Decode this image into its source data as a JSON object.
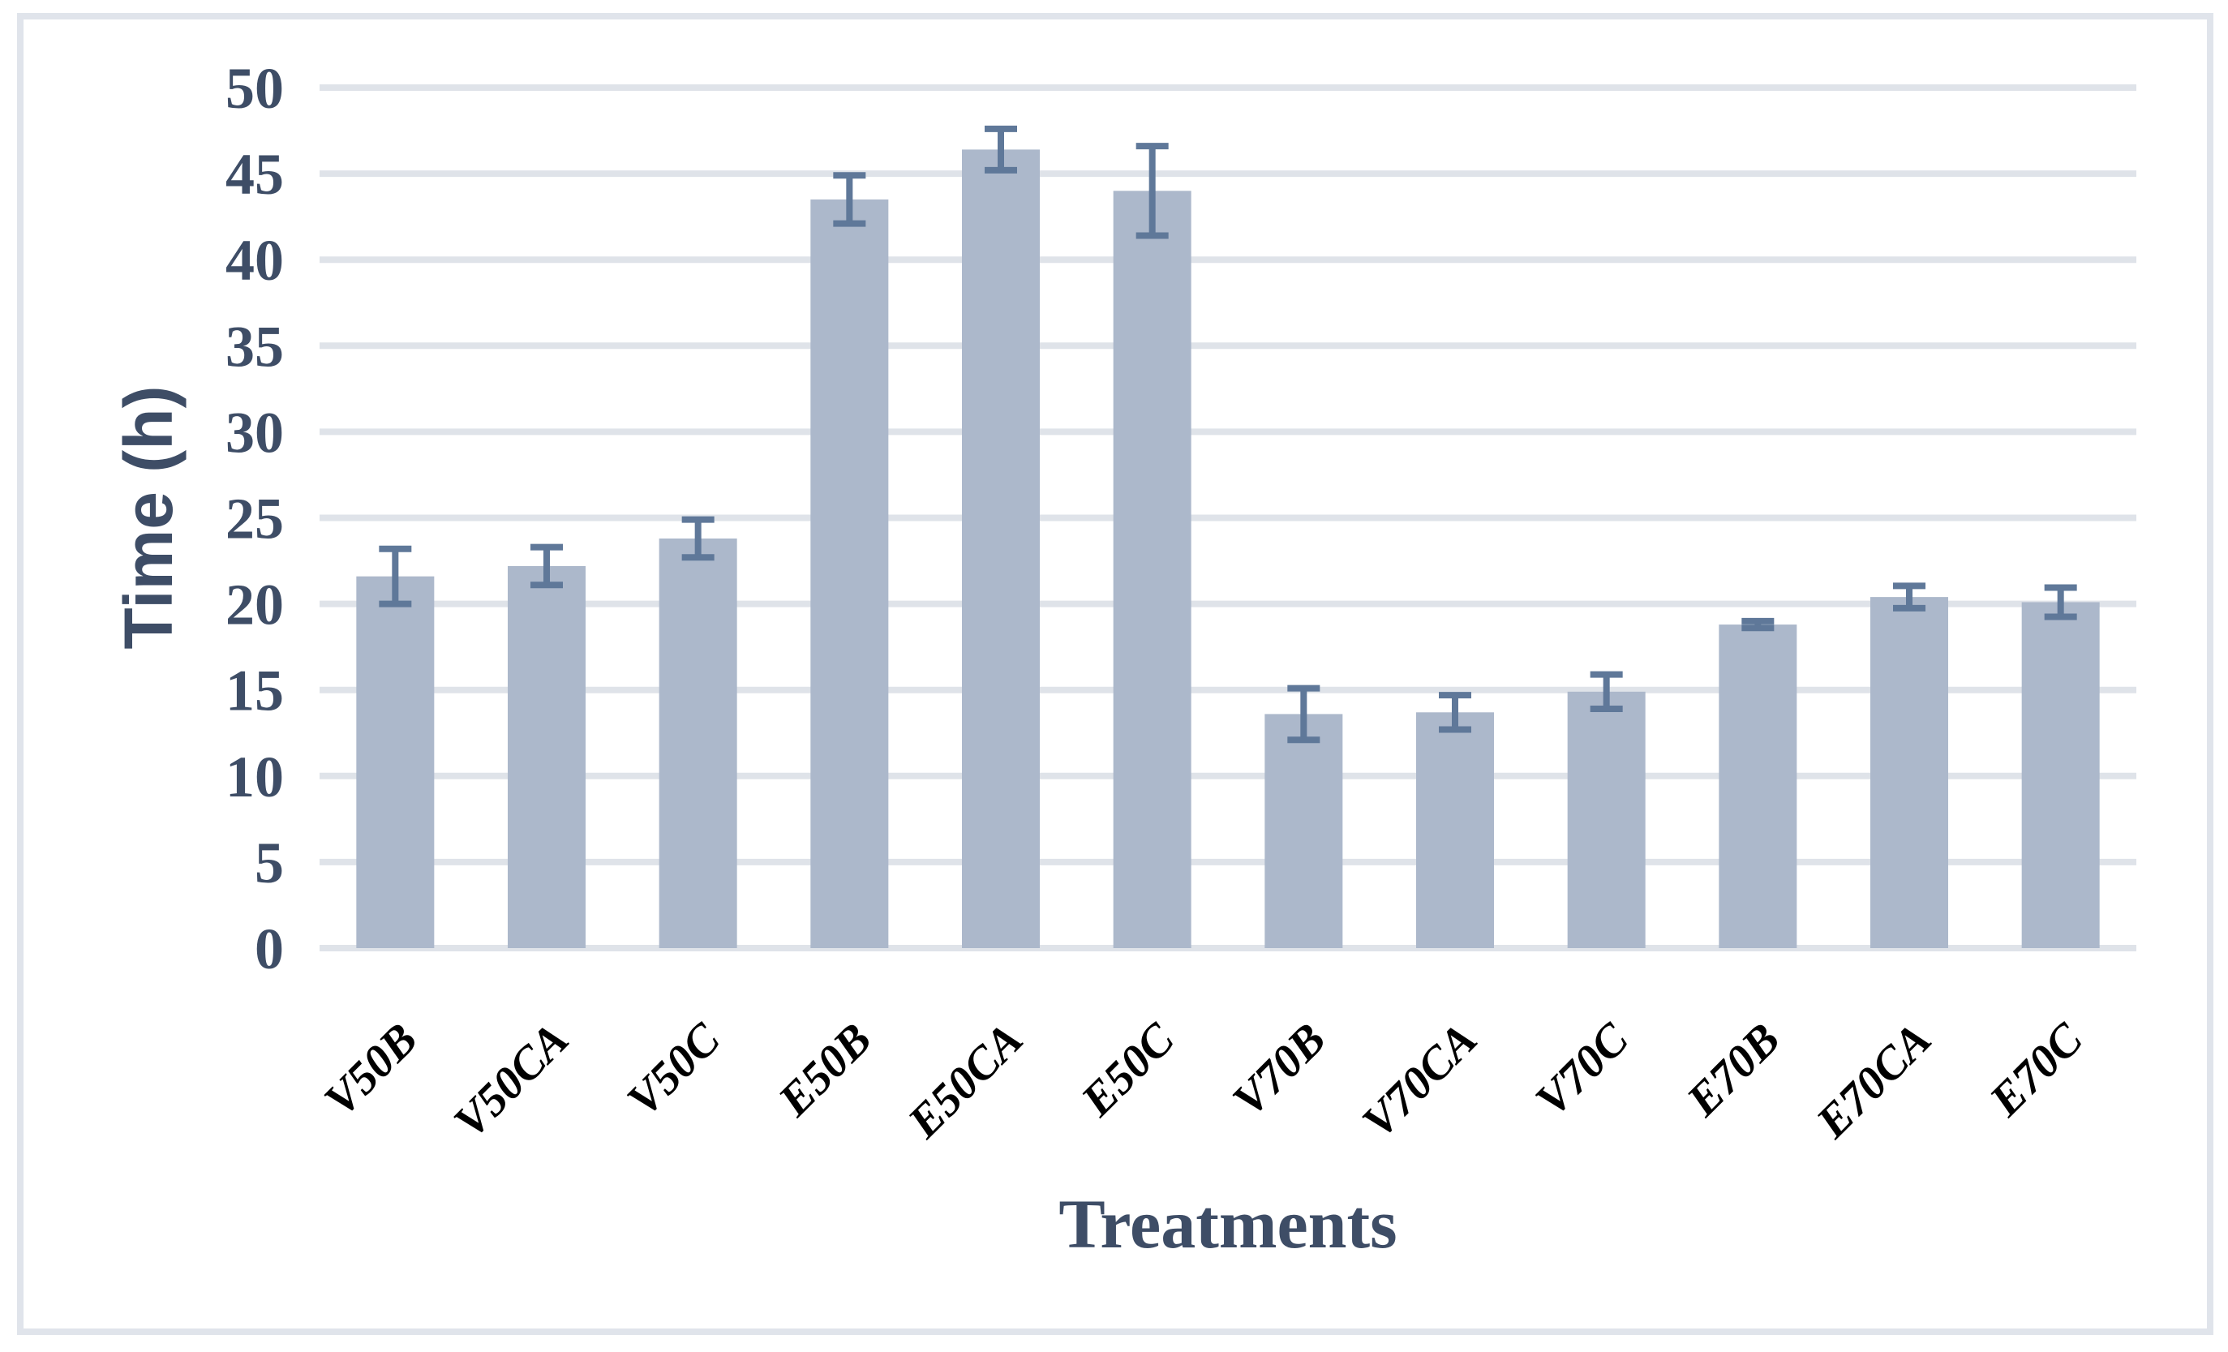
{
  "chart_data": {
    "type": "bar",
    "title": "",
    "xlabel": "Treatments",
    "ylabel": "Time (h)",
    "categories": [
      "V50B",
      "V50CA",
      "V50C",
      "E50B",
      "E50CA",
      "E50C",
      "V70B",
      "V70CA",
      "V70C",
      "E70B",
      "E70CA",
      "E70C"
    ],
    "series": [
      {
        "name": "Time (h)",
        "values": [
          21.6,
          22.2,
          23.8,
          43.5,
          46.4,
          44.0,
          13.6,
          13.7,
          14.9,
          18.8,
          20.4,
          20.1
        ],
        "error_bars": [
          1.6,
          1.1,
          1.1,
          1.4,
          1.2,
          2.6,
          1.5,
          1.0,
          1.0,
          0.2,
          0.65,
          0.85
        ]
      }
    ],
    "ylim": [
      0,
      50
    ],
    "yticks": [
      0,
      5,
      10,
      15,
      20,
      25,
      30,
      35,
      40,
      45,
      50
    ],
    "grid": "horizontal",
    "legend": "none",
    "colors": {
      "bar_fill": "#ACB8CB",
      "error_bar": "#5F7899",
      "gridline": "#DFE3E9",
      "figure_border": "#E0E4EB",
      "axis_title_text": "#3E4D66",
      "ytick_text": "#3E4D66",
      "xtick_text": "#000000",
      "background": "#FFFFFF"
    }
  }
}
